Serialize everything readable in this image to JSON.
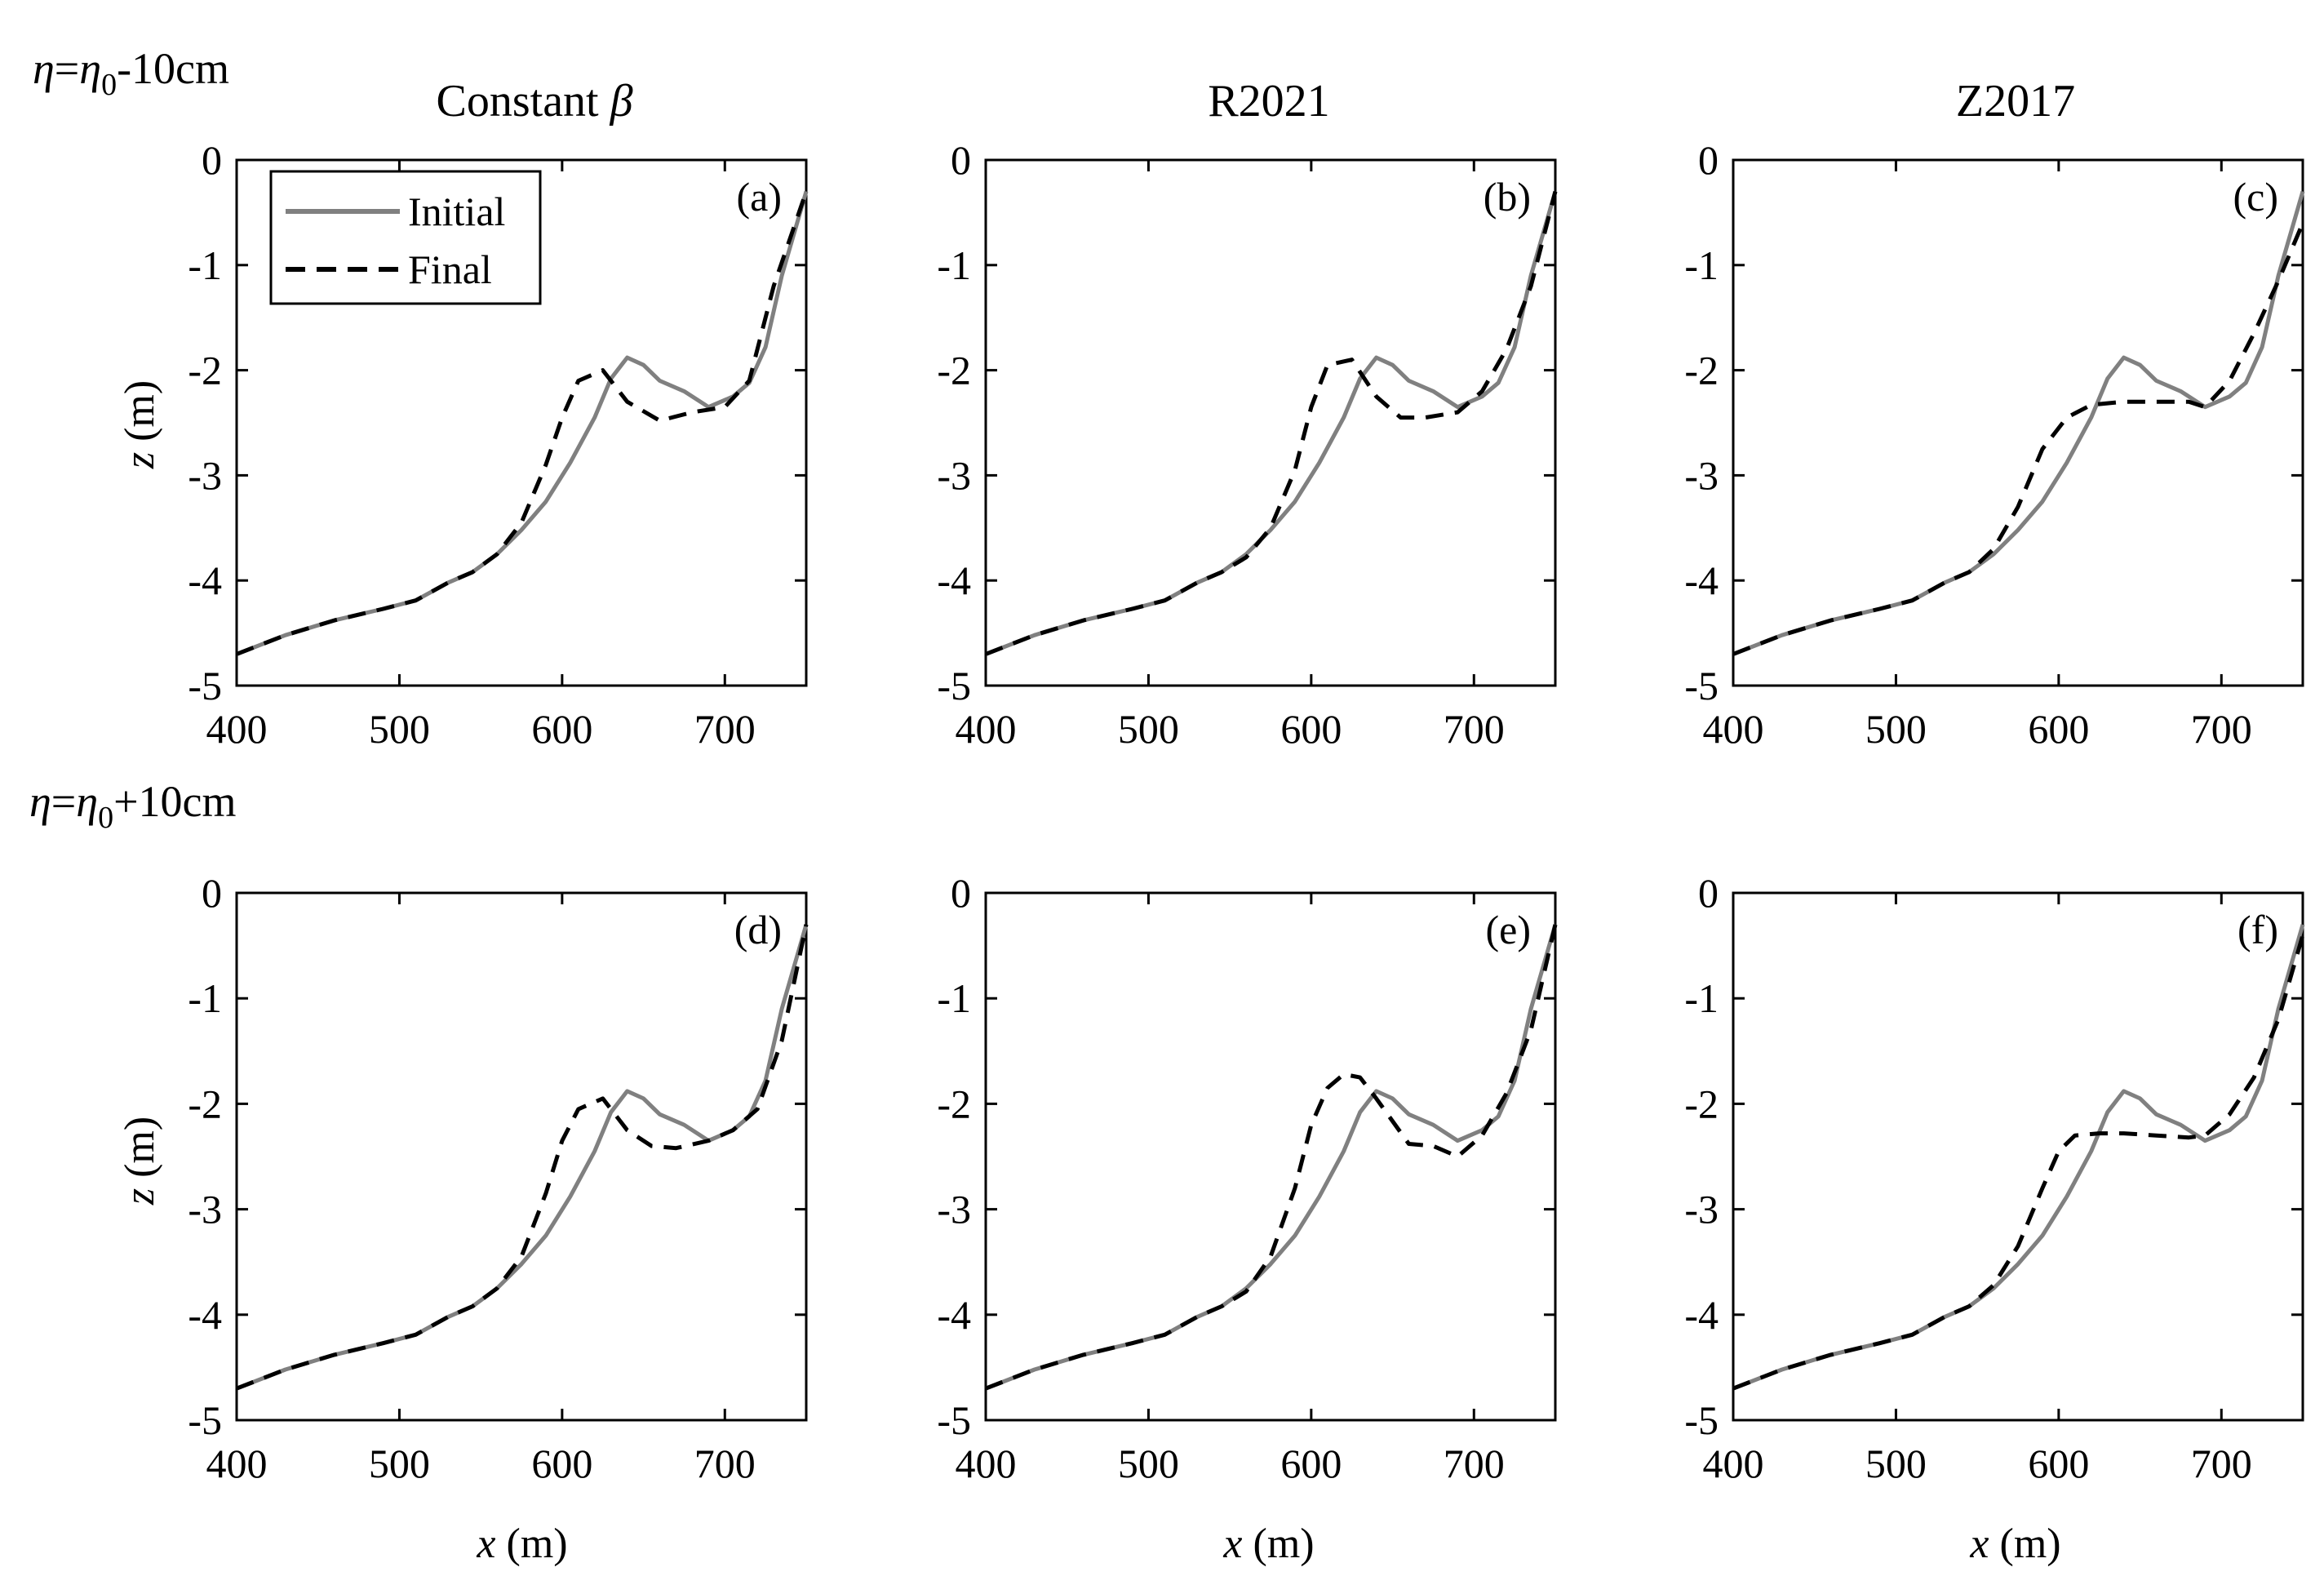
{
  "figure": {
    "row_titles": [
      {
        "eta1": "η",
        "eq": "=",
        "eta2": "η",
        "sub": "0",
        "rest": "-10cm"
      },
      {
        "eta1": "η",
        "eq": "=",
        "eta2": "η",
        "sub": "0",
        "rest": "+10cm"
      }
    ],
    "column_titles": [
      {
        "text": "Constant ",
        "symbol": "β"
      },
      {
        "text": "R2021",
        "symbol": ""
      },
      {
        "text": "Z2017",
        "symbol": ""
      }
    ],
    "ylabel": {
      "var": "z",
      "unit": " (m)"
    },
    "xlabel": {
      "var": "x",
      "unit": " (m)"
    },
    "x_ticks": [
      "400",
      "500",
      "600",
      "700"
    ],
    "y_ticks": [
      "0",
      "-1",
      "-2",
      "-3",
      "-4",
      "-5"
    ],
    "legend": {
      "initial": "Initial",
      "final": "Final"
    },
    "colors": {
      "initial": "#808080",
      "final": "#000000",
      "axes": "#000000"
    }
  },
  "chart_data": [
    {
      "type": "line",
      "panel_label": "(a)",
      "xlim": [
        400,
        750
      ],
      "ylim": [
        -5,
        0
      ],
      "grid": false,
      "legend_position": "top-left",
      "series": [
        {
          "name": "Initial",
          "x": [
            400,
            430,
            460,
            490,
            510,
            530,
            545,
            560,
            575,
            590,
            605,
            620,
            630,
            640,
            650,
            660,
            675,
            690,
            705,
            715,
            725,
            735,
            750
          ],
          "y": [
            -4.7,
            -4.52,
            -4.38,
            -4.27,
            -4.19,
            -4.02,
            -3.92,
            -3.75,
            -3.52,
            -3.25,
            -2.88,
            -2.45,
            -2.08,
            -1.88,
            -1.95,
            -2.1,
            -2.2,
            -2.35,
            -2.25,
            -2.12,
            -1.78,
            -1.1,
            -0.3
          ]
        },
        {
          "name": "Final",
          "x": [
            400,
            430,
            460,
            490,
            510,
            530,
            545,
            560,
            575,
            590,
            600,
            610,
            625,
            640,
            660,
            680,
            700,
            715,
            730,
            750
          ],
          "y": [
            -4.7,
            -4.52,
            -4.38,
            -4.27,
            -4.19,
            -4.02,
            -3.92,
            -3.75,
            -3.45,
            -2.9,
            -2.45,
            -2.1,
            -2.0,
            -2.3,
            -2.48,
            -2.4,
            -2.35,
            -2.1,
            -1.2,
            -0.3
          ]
        }
      ]
    },
    {
      "type": "line",
      "panel_label": "(b)",
      "xlim": [
        400,
        750
      ],
      "ylim": [
        -5,
        0
      ],
      "grid": false,
      "series": [
        {
          "name": "Initial",
          "x": [
            400,
            430,
            460,
            490,
            510,
            530,
            545,
            560,
            575,
            590,
            605,
            620,
            630,
            640,
            650,
            660,
            675,
            690,
            705,
            715,
            725,
            735,
            750
          ],
          "y": [
            -4.7,
            -4.52,
            -4.38,
            -4.27,
            -4.19,
            -4.02,
            -3.92,
            -3.75,
            -3.52,
            -3.25,
            -2.88,
            -2.45,
            -2.08,
            -1.88,
            -1.95,
            -2.1,
            -2.2,
            -2.35,
            -2.25,
            -2.12,
            -1.78,
            -1.1,
            -0.3
          ]
        },
        {
          "name": "Final",
          "x": [
            400,
            430,
            460,
            490,
            510,
            530,
            545,
            560,
            575,
            590,
            600,
            610,
            625,
            640,
            655,
            670,
            690,
            705,
            720,
            735,
            750
          ],
          "y": [
            -4.7,
            -4.52,
            -4.38,
            -4.27,
            -4.19,
            -4.02,
            -3.92,
            -3.78,
            -3.5,
            -2.95,
            -2.35,
            -1.95,
            -1.9,
            -2.25,
            -2.45,
            -2.45,
            -2.4,
            -2.2,
            -1.8,
            -1.2,
            -0.3
          ]
        }
      ]
    },
    {
      "type": "line",
      "panel_label": "(c)",
      "xlim": [
        400,
        750
      ],
      "ylim": [
        -5,
        0
      ],
      "grid": false,
      "series": [
        {
          "name": "Initial",
          "x": [
            400,
            430,
            460,
            490,
            510,
            530,
            545,
            560,
            575,
            590,
            605,
            620,
            630,
            640,
            650,
            660,
            675,
            690,
            705,
            715,
            725,
            735,
            750
          ],
          "y": [
            -4.7,
            -4.52,
            -4.38,
            -4.27,
            -4.19,
            -4.02,
            -3.92,
            -3.75,
            -3.52,
            -3.25,
            -2.88,
            -2.45,
            -2.08,
            -1.88,
            -1.95,
            -2.1,
            -2.2,
            -2.35,
            -2.25,
            -2.12,
            -1.78,
            -1.1,
            -0.3
          ]
        },
        {
          "name": "Final",
          "x": [
            400,
            430,
            460,
            490,
            510,
            530,
            545,
            560,
            575,
            590,
            605,
            620,
            640,
            660,
            680,
            690,
            705,
            720,
            735,
            750
          ],
          "y": [
            -4.7,
            -4.52,
            -4.38,
            -4.27,
            -4.19,
            -4.02,
            -3.92,
            -3.7,
            -3.3,
            -2.75,
            -2.45,
            -2.33,
            -2.3,
            -2.3,
            -2.3,
            -2.35,
            -2.1,
            -1.65,
            -1.15,
            -0.6
          ]
        }
      ]
    },
    {
      "type": "line",
      "panel_label": "(d)",
      "xlim": [
        400,
        750
      ],
      "ylim": [
        -5,
        0
      ],
      "grid": false,
      "series": [
        {
          "name": "Initial",
          "x": [
            400,
            430,
            460,
            490,
            510,
            530,
            545,
            560,
            575,
            590,
            605,
            620,
            630,
            640,
            650,
            660,
            675,
            690,
            705,
            715,
            725,
            735,
            750
          ],
          "y": [
            -4.7,
            -4.52,
            -4.38,
            -4.27,
            -4.19,
            -4.02,
            -3.92,
            -3.75,
            -3.52,
            -3.25,
            -2.88,
            -2.45,
            -2.08,
            -1.88,
            -1.95,
            -2.1,
            -2.2,
            -2.35,
            -2.25,
            -2.12,
            -1.78,
            -1.1,
            -0.3
          ]
        },
        {
          "name": "Final",
          "x": [
            400,
            430,
            460,
            490,
            510,
            530,
            545,
            560,
            575,
            590,
            600,
            610,
            625,
            640,
            655,
            670,
            690,
            705,
            720,
            735,
            750
          ],
          "y": [
            -4.7,
            -4.52,
            -4.38,
            -4.27,
            -4.19,
            -4.02,
            -3.92,
            -3.75,
            -3.45,
            -2.85,
            -2.35,
            -2.05,
            -1.95,
            -2.25,
            -2.4,
            -2.42,
            -2.35,
            -2.25,
            -2.05,
            -1.4,
            -0.3
          ]
        }
      ]
    },
    {
      "type": "line",
      "panel_label": "(e)",
      "xlim": [
        400,
        750
      ],
      "ylim": [
        -5,
        0
      ],
      "grid": false,
      "series": [
        {
          "name": "Initial",
          "x": [
            400,
            430,
            460,
            490,
            510,
            530,
            545,
            560,
            575,
            590,
            605,
            620,
            630,
            640,
            650,
            660,
            675,
            690,
            705,
            715,
            725,
            735,
            750
          ],
          "y": [
            -4.7,
            -4.52,
            -4.38,
            -4.27,
            -4.19,
            -4.02,
            -3.92,
            -3.75,
            -3.52,
            -3.25,
            -2.88,
            -2.45,
            -2.08,
            -1.88,
            -1.95,
            -2.1,
            -2.2,
            -2.35,
            -2.25,
            -2.12,
            -1.78,
            -1.1,
            -0.3
          ]
        },
        {
          "name": "Final",
          "x": [
            400,
            430,
            460,
            490,
            510,
            530,
            545,
            560,
            575,
            590,
            600,
            610,
            620,
            630,
            640,
            660,
            675,
            690,
            705,
            720,
            735,
            750
          ],
          "y": [
            -4.7,
            -4.52,
            -4.38,
            -4.27,
            -4.19,
            -4.02,
            -3.92,
            -3.78,
            -3.45,
            -2.8,
            -2.2,
            -1.85,
            -1.72,
            -1.75,
            -1.95,
            -2.38,
            -2.4,
            -2.5,
            -2.3,
            -1.9,
            -1.3,
            -0.3
          ]
        }
      ]
    },
    {
      "type": "line",
      "panel_label": "(f)",
      "xlim": [
        400,
        750
      ],
      "ylim": [
        -5,
        0
      ],
      "grid": false,
      "series": [
        {
          "name": "Initial",
          "x": [
            400,
            430,
            460,
            490,
            510,
            530,
            545,
            560,
            575,
            590,
            605,
            620,
            630,
            640,
            650,
            660,
            675,
            690,
            705,
            715,
            725,
            735,
            750
          ],
          "y": [
            -4.7,
            -4.52,
            -4.38,
            -4.27,
            -4.19,
            -4.02,
            -3.92,
            -3.75,
            -3.52,
            -3.25,
            -2.88,
            -2.45,
            -2.08,
            -1.88,
            -1.95,
            -2.1,
            -2.2,
            -2.35,
            -2.25,
            -2.12,
            -1.78,
            -1.1,
            -0.3
          ]
        },
        {
          "name": "Final",
          "x": [
            400,
            430,
            460,
            490,
            510,
            530,
            545,
            560,
            575,
            590,
            600,
            610,
            625,
            640,
            660,
            680,
            690,
            705,
            720,
            735,
            750
          ],
          "y": [
            -4.7,
            -4.52,
            -4.38,
            -4.27,
            -4.19,
            -4.02,
            -3.92,
            -3.72,
            -3.35,
            -2.8,
            -2.45,
            -2.3,
            -2.28,
            -2.28,
            -2.3,
            -2.32,
            -2.3,
            -2.1,
            -1.75,
            -1.2,
            -0.4
          ]
        }
      ]
    }
  ]
}
